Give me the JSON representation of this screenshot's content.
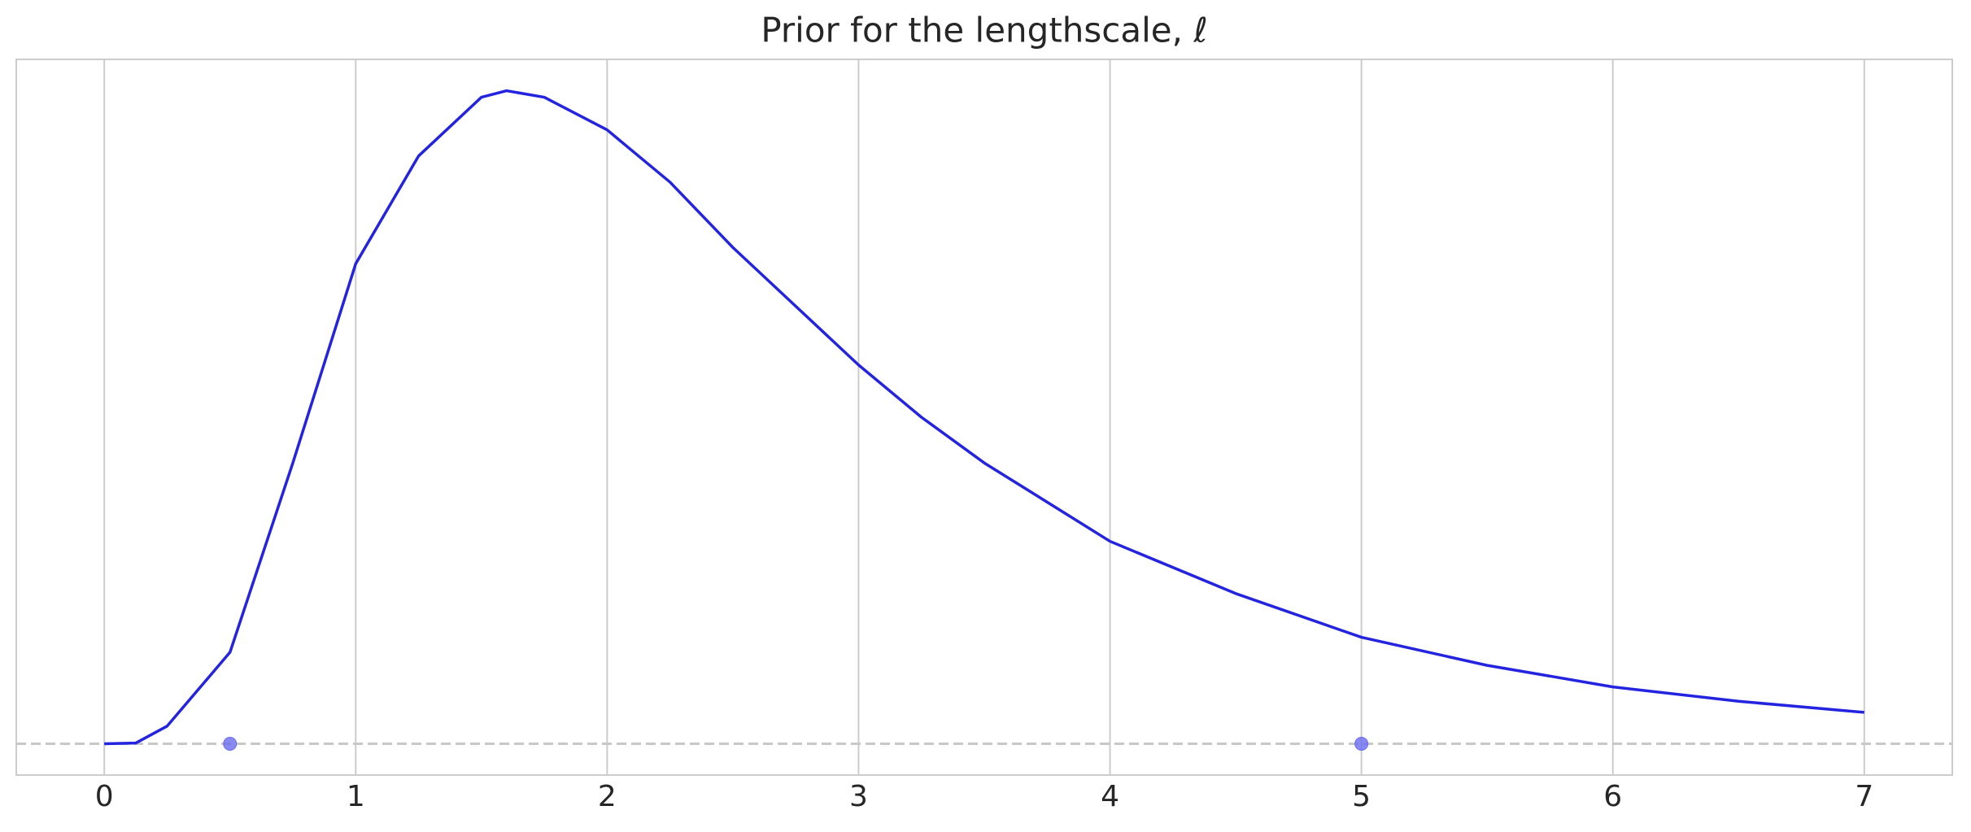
{
  "chart_data": {
    "type": "line",
    "title": "Prior for the lengthscale, ℓ",
    "x": [
      0,
      0.125,
      0.25,
      0.5,
      0.75,
      1.0,
      1.25,
      1.5,
      1.6,
      1.75,
      2.0,
      2.25,
      2.5,
      2.75,
      3.0,
      3.25,
      3.5,
      3.75,
      4.0,
      4.5,
      5.0,
      5.5,
      6.0,
      6.5,
      7.0
    ],
    "values": [
      0,
      0.001,
      0.027,
      0.14,
      0.43,
      0.735,
      0.9,
      0.99,
      1.0,
      0.99,
      0.94,
      0.86,
      0.76,
      0.67,
      0.58,
      0.5,
      0.43,
      0.37,
      0.31,
      0.23,
      0.163,
      0.12,
      0.087,
      0.065,
      0.048
    ],
    "color": "#2424e0",
    "points": {
      "x": [
        0.5,
        5
      ],
      "values": [
        0,
        0
      ],
      "color": "#6b6bf0"
    },
    "hline": 0,
    "xlim": [
      -0.35,
      7.35
    ],
    "ylim": [
      -0.048,
      1.048
    ],
    "xticks": [
      0,
      1,
      2,
      3,
      4,
      5,
      6,
      7
    ],
    "grid": true
  }
}
